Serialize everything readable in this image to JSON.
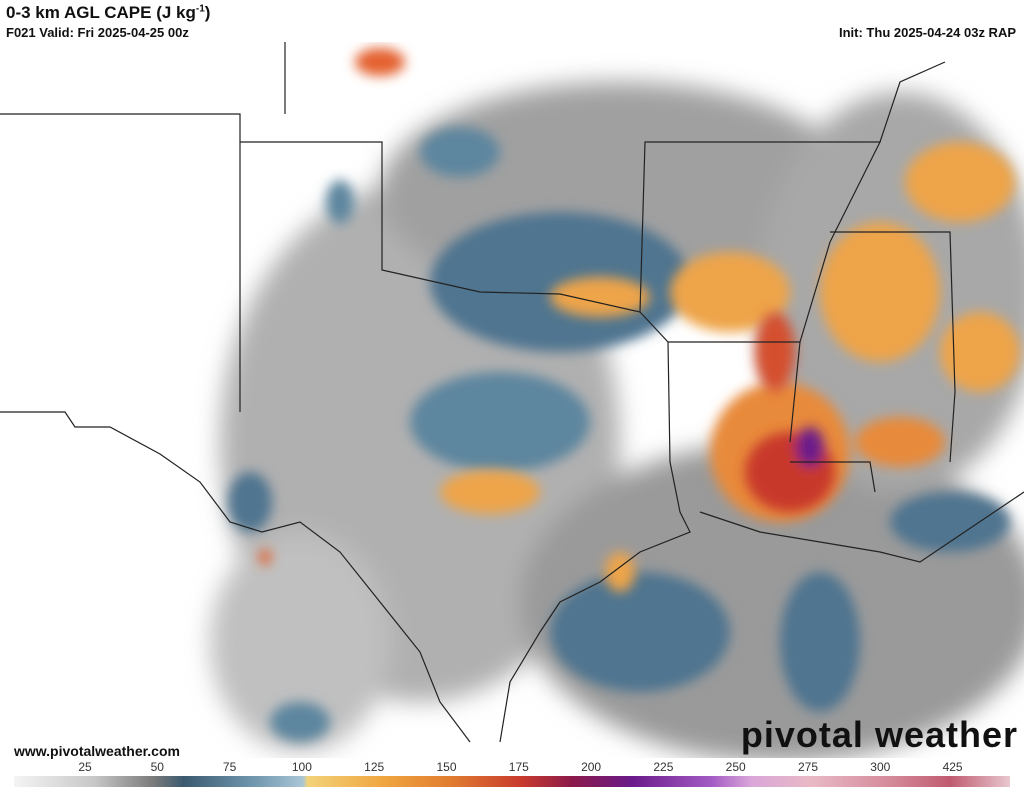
{
  "header": {
    "title": "0-3 km AGL CAPE (J kg",
    "title_superscript": "-1",
    "title_close": ")",
    "valid": "F021 Valid: Fri 2025-04-25 00z",
    "init": "Init: Thu 2025-04-24 03z RAP"
  },
  "footer": {
    "url": "www.pivotalweather.com",
    "logo": "pivotal weather"
  },
  "colorbar": {
    "labels": [
      25,
      50,
      75,
      100,
      125,
      150,
      175,
      200,
      225,
      250,
      275,
      300,
      425
    ]
  }
}
